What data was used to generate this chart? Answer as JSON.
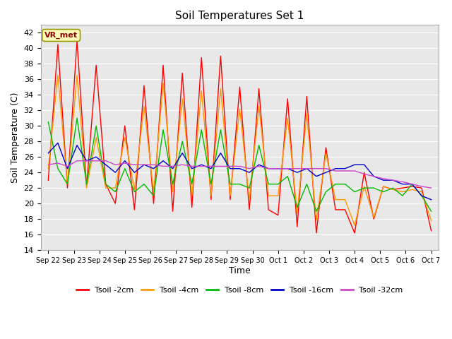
{
  "title": "Soil Temperatures Set 1",
  "xlabel": "Time",
  "ylabel": "Soil Temperature (C)",
  "ylim": [
    14,
    43
  ],
  "yticks": [
    14,
    16,
    18,
    20,
    22,
    24,
    26,
    28,
    30,
    32,
    34,
    36,
    38,
    40,
    42
  ],
  "plot_bg_color": "#e8e8e8",
  "series_colors": [
    "#ff0000",
    "#ff9900",
    "#00bb00",
    "#0000cc",
    "#cc44cc"
  ],
  "series_labels": [
    "Tsoil -2cm",
    "Tsoil -4cm",
    "Tsoil -8cm",
    "Tsoil -16cm",
    "Tsoil -32cm"
  ],
  "watermark": "VR_met",
  "x_labels": [
    "Sep 22",
    "Sep 23",
    "Sep 24",
    "Sep 25",
    "Sep 26",
    "Sep 27",
    "Sep 28",
    "Sep 29",
    "Sep 30",
    "Oct 1",
    "Oct 2",
    "Oct 3",
    "Oct 4",
    "Oct 5",
    "Oct 6",
    "Oct 7"
  ],
  "tsoil_2cm": [
    23.0,
    40.5,
    22.0,
    41.0,
    22.2,
    37.8,
    22.5,
    20.0,
    30.0,
    19.2,
    35.2,
    20.0,
    37.8,
    19.0,
    36.8,
    19.5,
    38.8,
    20.5,
    39.0,
    20.5,
    35.0,
    19.2,
    34.8,
    19.2,
    18.5,
    33.5,
    17.0,
    33.8,
    16.2,
    27.2,
    19.2,
    19.2,
    16.2,
    24.0,
    18.0,
    22.2,
    21.8,
    22.0,
    22.2,
    22.0,
    16.5
  ],
  "tsoil_4cm": [
    24.5,
    36.5,
    22.5,
    36.5,
    22.0,
    28.5,
    22.0,
    22.0,
    28.5,
    21.8,
    32.5,
    21.5,
    35.5,
    21.5,
    33.5,
    21.0,
    34.5,
    21.0,
    34.8,
    21.0,
    32.2,
    20.5,
    32.5,
    21.0,
    21.0,
    31.0,
    18.8,
    31.5,
    17.8,
    26.5,
    20.5,
    20.5,
    17.2,
    22.2,
    18.2,
    22.2,
    21.8,
    21.5,
    21.8,
    21.5,
    17.8
  ],
  "tsoil_8cm": [
    30.5,
    24.5,
    22.5,
    31.0,
    22.5,
    30.0,
    22.5,
    21.5,
    24.5,
    21.5,
    22.5,
    21.0,
    29.5,
    22.5,
    28.0,
    22.5,
    29.5,
    22.5,
    29.5,
    22.5,
    22.5,
    22.0,
    27.5,
    22.5,
    22.5,
    23.5,
    19.5,
    22.5,
    19.0,
    21.5,
    22.5,
    22.5,
    21.5,
    22.0,
    22.0,
    21.5,
    22.0,
    21.0,
    22.5,
    21.0,
    19.0
  ],
  "tsoil_16cm": [
    26.5,
    27.8,
    24.5,
    27.5,
    25.5,
    26.0,
    25.0,
    24.0,
    25.5,
    24.0,
    25.0,
    24.5,
    25.5,
    24.5,
    26.5,
    24.5,
    25.0,
    24.5,
    26.5,
    24.5,
    24.5,
    24.0,
    25.0,
    24.5,
    24.5,
    24.5,
    24.0,
    24.5,
    23.5,
    24.0,
    24.5,
    24.5,
    25.0,
    25.0,
    23.5,
    23.0,
    23.0,
    22.5,
    22.5,
    21.0,
    20.5
  ],
  "tsoil_32cm": [
    25.0,
    25.2,
    24.8,
    25.5,
    25.5,
    25.5,
    25.5,
    25.0,
    25.2,
    25.0,
    25.0,
    25.0,
    24.8,
    24.8,
    25.0,
    24.8,
    24.8,
    24.8,
    24.8,
    24.8,
    24.8,
    24.5,
    24.8,
    24.5,
    24.5,
    24.5,
    24.5,
    24.5,
    24.5,
    24.5,
    24.2,
    24.2,
    24.2,
    23.8,
    23.5,
    23.2,
    23.0,
    22.8,
    22.5,
    22.2,
    22.0
  ]
}
